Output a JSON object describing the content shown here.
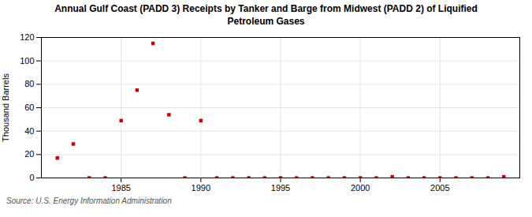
{
  "chart_data": {
    "type": "scatter",
    "title": "Annual Gulf Coast (PADD 3) Receipts by Tanker and Barge from Midwest (PADD 2) of Liquified\nPetroleum Gases",
    "ylabel": "Thousand Barrels",
    "source": "Source: U.S. Energy Information Administration",
    "x": [
      1981,
      1982,
      1983,
      1984,
      1985,
      1986,
      1987,
      1988,
      1989,
      1990,
      1991,
      1992,
      1993,
      1994,
      1995,
      1996,
      1997,
      1998,
      1999,
      2000,
      2001,
      2002,
      2003,
      2004,
      2005,
      2006,
      2007,
      2008,
      2009
    ],
    "values": [
      17,
      29,
      0,
      0,
      49,
      75,
      115,
      54,
      0,
      49,
      0,
      0,
      0,
      0,
      0,
      0,
      0,
      0,
      0,
      0,
      0,
      1,
      0,
      0,
      0,
      0,
      0,
      0,
      1
    ],
    "color": "#cc0000",
    "marker": "square",
    "xlim": [
      1980,
      2010
    ],
    "xticks": [
      1985,
      1990,
      1995,
      2000,
      2005
    ],
    "ylim": [
      0,
      120
    ],
    "yticks": [
      0,
      20,
      40,
      60,
      80,
      100,
      120
    ],
    "grid": true
  }
}
